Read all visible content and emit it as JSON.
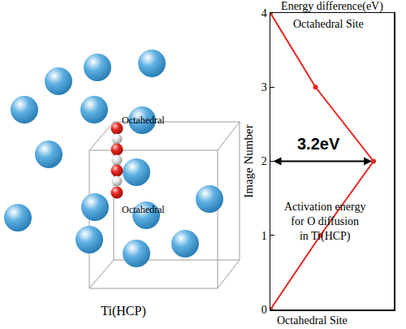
{
  "chart_data": {
    "type": "line",
    "x_title": "Energy difference(eV)",
    "y_title": "Image Number",
    "x": [
      0,
      1.55,
      3.2,
      1.4,
      0
    ],
    "values": [
      0,
      1,
      2,
      3,
      4
    ],
    "color": "#e8251f",
    "marker": "circle",
    "xlim": [
      0,
      3.83
    ],
    "ylim": [
      0,
      4
    ],
    "yticks": [
      0,
      1,
      2,
      3,
      4
    ],
    "tick_labels": "y",
    "site_labels": {
      "top": "Octahedral Site",
      "bottom": "Octahedral Site"
    },
    "activation": {
      "value": 3.2,
      "label": "3.2eV",
      "text": [
        "Activation energy",
        "for O diffusion",
        "in Ti(HCP)"
      ]
    }
  },
  "diagram": {
    "title": "Ti(HCP)",
    "site_labels": [
      "Octahedral",
      "Octahedral"
    ]
  }
}
